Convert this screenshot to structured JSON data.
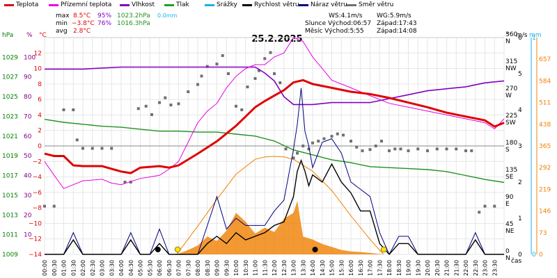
{
  "legend": [
    {
      "label": "Teplota",
      "color": "#e00000"
    },
    {
      "label": "Přízemní teplota",
      "color": "#e600e6"
    },
    {
      "label": "Vlhkost",
      "color": "#8000c0"
    },
    {
      "label": "Tlak",
      "color": "#20a020"
    },
    {
      "label": "Srážky",
      "color": "#1ab0e8"
    },
    {
      "label": "Rychlost větru",
      "color": "#000000"
    },
    {
      "label": "Náraz větru",
      "color": "#000080"
    },
    {
      "label": "Směr větru",
      "color": "#707070"
    }
  ],
  "stats": {
    "max_label": "max",
    "max_temp": "8.5°C",
    "max_hum": "95%",
    "max_press": "1023.2hPa",
    "max_rain": "0.0mm",
    "min_label": "min",
    "min_temp": "−3.8°C",
    "min_hum": "76%",
    "min_press": "1016.3hPa",
    "avg_label": "avg",
    "avg_temp": "2.8°C"
  },
  "wind_info": {
    "ws": "WS:4.1m/s",
    "wg": "WG:5.9m/s"
  },
  "sun": {
    "rise": "Slunce Východ:06:57",
    "set": "Západ:17:43"
  },
  "moon": {
    "rise": "Měsíc  Východ:5:55",
    "set": "Západ:14:08"
  },
  "chart_data": {
    "type": "line",
    "title": "25.2.2025",
    "xlabel": "čas",
    "x_ticks": [
      "00:00",
      "00:30",
      "01:00",
      "01:30",
      "02:00",
      "02:30",
      "03:00",
      "03:30",
      "04:00",
      "04:30",
      "05:00",
      "05:30",
      "06:00",
      "06:30",
      "07:00",
      "07:30",
      "08:00",
      "08:30",
      "09:00",
      "09:30",
      "10:00",
      "10:30",
      "11:00",
      "11:30",
      "12:00",
      "12:30",
      "13:00",
      "13:30",
      "14:00",
      "14:30",
      "15:00",
      "15:30",
      "16:00",
      "16:30",
      "17:00",
      "17:30",
      "18:00",
      "18:30",
      "19:00",
      "19:30",
      "20:00",
      "20:30",
      "21:00",
      "21:30",
      "22:00",
      "22:30",
      "23:00",
      "23:30"
    ],
    "axes": {
      "pressure": {
        "label": "hPa",
        "ticks": [
          1009,
          1011,
          1013,
          1015,
          1017,
          1019,
          1021,
          1023,
          1025,
          1027,
          1029
        ],
        "range": [
          1009,
          1031
        ],
        "color": "#008000"
      },
      "humidity": {
        "label": "%",
        "ticks": [
          10,
          20,
          30,
          40,
          50,
          60,
          70,
          80,
          90,
          100
        ],
        "range": [
          0,
          110
        ],
        "color": "#800080"
      },
      "temperature": {
        "label": "°C",
        "ticks": [
          -14,
          -12,
          -10,
          -8,
          -6,
          -4,
          -2,
          0,
          2,
          4,
          6,
          8,
          10,
          12
        ],
        "range": [
          -14,
          14
        ],
        "color": "#e00000"
      },
      "direction": {
        "label": "°",
        "ticks": [
          {
            "v": "0",
            "c": "N"
          },
          {
            "v": "45",
            "c": "NE"
          },
          {
            "v": "90",
            "c": "E"
          },
          {
            "v": "135",
            "c": "SE"
          },
          {
            "v": "180",
            "c": "S"
          },
          {
            "v": "225",
            "c": "SW"
          },
          {
            "v": "270",
            "c": "W"
          },
          {
            "v": "315",
            "c": "NW"
          },
          {
            "v": "360",
            "c": "N"
          }
        ],
        "range": [
          0,
          360
        ]
      },
      "wind": {
        "label": "m/s",
        "ticks": [
          0,
          1,
          2,
          3,
          4,
          5,
          6
        ],
        "range": [
          0,
          6
        ]
      },
      "rain": {
        "label": "mm",
        "ticks": [
          0,
          1
        ],
        "range": [
          0,
          1
        ],
        "color": "#1ab0e8"
      },
      "solar": {
        "ticks": [
          0,
          73,
          146,
          219,
          292,
          365,
          438,
          511,
          584,
          657
        ],
        "range": [
          0,
          730
        ],
        "color": "#f08000"
      }
    },
    "series": [
      {
        "name": "Teplota",
        "axis": "temperature",
        "color": "#e00000",
        "x": [
          0,
          0.5,
          1,
          1.5,
          2,
          3,
          4,
          4.5,
          5,
          6,
          6.5,
          7,
          8,
          9,
          9.5,
          10,
          10.5,
          11,
          11.5,
          12,
          12.5,
          13,
          13.5,
          14,
          15,
          16,
          17,
          18,
          19,
          20,
          21,
          22,
          23,
          23.5,
          24
        ],
        "y": [
          -1.0,
          -1.3,
          -1.3,
          -2.5,
          -2.6,
          -2.6,
          -3.3,
          -3.5,
          -2.8,
          -2.6,
          -2.8,
          -2.5,
          -1.0,
          0.6,
          1.6,
          2.6,
          3.8,
          5.0,
          5.8,
          6.5,
          7.2,
          8.2,
          8.5,
          8.0,
          7.5,
          7.0,
          6.7,
          6.2,
          5.6,
          5.0,
          4.3,
          3.8,
          3.3,
          2.5,
          3.0
        ]
      },
      {
        "name": "Přízemní teplota",
        "axis": "temperature",
        "color": "#e600e6",
        "x": [
          0,
          0.5,
          1,
          1.5,
          2,
          3,
          3.5,
          4,
          5,
          6,
          6.5,
          7,
          7.5,
          8,
          8.5,
          9,
          9.5,
          10,
          10.5,
          11,
          11.5,
          12,
          12.5,
          13,
          13.5,
          14,
          14.5,
          15,
          16,
          17,
          18,
          19,
          20,
          21,
          22,
          23,
          23.5,
          24
        ],
        "y": [
          -2.0,
          -3.8,
          -5.5,
          -5.0,
          -4.5,
          -4.3,
          -4.8,
          -5.0,
          -4.2,
          -3.8,
          -3.0,
          -2.0,
          0.5,
          3.0,
          4.5,
          5.5,
          7.5,
          9.0,
          10.0,
          10.5,
          10.5,
          11.5,
          12.0,
          14.0,
          13.5,
          11.5,
          10.0,
          8.5,
          7.5,
          6.5,
          5.5,
          5.0,
          4.5,
          4.0,
          3.5,
          3.0,
          2.2,
          3.5
        ]
      },
      {
        "name": "Vlhkost",
        "axis": "humidity",
        "color": "#8000c0",
        "x": [
          0,
          2,
          4,
          6,
          7,
          8,
          9,
          10,
          11,
          11.5,
          12,
          12.5,
          13,
          13.5,
          14,
          15,
          16,
          17,
          18,
          19,
          20,
          21,
          22,
          23,
          24
        ],
        "y": [
          94,
          94,
          95,
          95,
          95,
          95,
          95,
          95,
          95,
          92,
          88,
          80,
          76,
          76,
          76,
          77,
          77,
          77,
          79,
          81,
          83,
          84,
          85,
          87,
          88
        ]
      },
      {
        "name": "Tlak",
        "axis": "pressure",
        "color": "#209020",
        "x": [
          0,
          1,
          2,
          3,
          4,
          5,
          6,
          7,
          8,
          9,
          10,
          11,
          12,
          13,
          14,
          15,
          16,
          17,
          18,
          19,
          20,
          21,
          22,
          23,
          24
        ],
        "y": [
          1022.7,
          1022.4,
          1022.2,
          1022.0,
          1021.9,
          1021.7,
          1021.5,
          1021.5,
          1021.4,
          1021.4,
          1021.2,
          1021.0,
          1020.5,
          1019.6,
          1019.1,
          1018.6,
          1018.3,
          1017.9,
          1017.8,
          1017.7,
          1017.6,
          1017.4,
          1017.0,
          1016.6,
          1016.3
        ]
      },
      {
        "name": "Rychlost větru",
        "axis": "wind",
        "color": "#000000",
        "x": [
          0,
          1,
          1.5,
          2,
          2.5,
          3,
          3.5,
          4,
          4.5,
          5,
          5.5,
          6,
          6.5,
          7,
          7.5,
          8,
          8.5,
          9,
          9.5,
          10,
          10.5,
          11,
          11.5,
          12,
          12.5,
          13,
          13.2,
          13.4,
          13.6,
          13.8,
          14,
          14.5,
          15,
          15.5,
          16,
          16.5,
          17,
          17.5,
          18,
          18.5,
          19,
          19.5,
          20,
          20.5,
          21,
          21.5,
          22,
          22.5,
          23,
          23.5,
          24
        ],
        "y": [
          0,
          0,
          0.4,
          0,
          0,
          0,
          0,
          0,
          0.4,
          0,
          0,
          0.3,
          0,
          0,
          0,
          0,
          0.3,
          0.5,
          0.3,
          0.6,
          0.4,
          0.5,
          0.6,
          0.8,
          0.9,
          1.6,
          2.3,
          2.6,
          2.3,
          1.9,
          2.2,
          2.0,
          2.5,
          2.0,
          1.7,
          1.2,
          1.2,
          0.3,
          0,
          0.3,
          0.3,
          0,
          0,
          0,
          0,
          0,
          0,
          0.4,
          0,
          0,
          0
        ]
      },
      {
        "name": "Náraz větru",
        "axis": "wind",
        "color": "#000080",
        "x": [
          0,
          1,
          1.5,
          2,
          2.5,
          3,
          3.5,
          4,
          4.5,
          5,
          5.5,
          6,
          6.5,
          7,
          7.5,
          8,
          8.5,
          9,
          9.5,
          10,
          10.5,
          11,
          11.5,
          12,
          12.5,
          13,
          13.2,
          13.4,
          13.6,
          13.8,
          14,
          14.5,
          15,
          15.5,
          16,
          16.5,
          17,
          17.5,
          18,
          18.5,
          19,
          19.5,
          20,
          20.5,
          21,
          21.5,
          22,
          22.5,
          23,
          23.5,
          24
        ],
        "y": [
          0,
          0,
          0.6,
          0,
          0,
          0,
          0,
          0,
          0.6,
          0,
          0,
          0.7,
          0,
          0,
          0,
          0,
          0.8,
          1.6,
          0.7,
          1.0,
          0.8,
          0.8,
          0.8,
          1.2,
          1.5,
          2.9,
          3.6,
          4.6,
          3.4,
          3.0,
          2.4,
          3.1,
          3.2,
          2.8,
          2.0,
          1.8,
          1.6,
          0.6,
          0,
          0.5,
          0.5,
          0,
          0,
          0,
          0,
          0,
          0,
          0.6,
          0,
          0,
          0
        ]
      },
      {
        "name": "Sluneční záření",
        "axis": "solar",
        "color": "#f08000",
        "x": [
          6.9,
          8,
          9,
          10,
          11,
          11.5,
          12,
          12.5,
          13,
          14,
          15,
          16,
          17,
          17.7
        ],
        "y": [
          0,
          95,
          185,
          270,
          320,
          328,
          330,
          328,
          320,
          280,
          215,
          130,
          50,
          0
        ]
      },
      {
        "name": "Sluneční záření (naměřené)",
        "axis": "solar",
        "color": "#f08000",
        "x": [
          6.9,
          7.5,
          8,
          8.5,
          9,
          9.5,
          10,
          10.5,
          11,
          11.5,
          12,
          12.5,
          13,
          13.2,
          13.5,
          14,
          14.5,
          15,
          15.5,
          16,
          16.5,
          17,
          17.7
        ],
        "y": [
          0,
          15,
          30,
          60,
          45,
          80,
          140,
          110,
          70,
          90,
          75,
          120,
          140,
          180,
          60,
          50,
          35,
          25,
          15,
          10,
          8,
          5,
          0
        ]
      },
      {
        "name": "Směr větru",
        "axis": "direction",
        "color": "#707070",
        "x": [
          0,
          0.5,
          1,
          1.5,
          1.7,
          2,
          2.5,
          3,
          3.5,
          4.2,
          4.5,
          4.9,
          5.3,
          5.6,
          6,
          6.3,
          6.6,
          7,
          7.5,
          8,
          8.2,
          8.5,
          9,
          9.3,
          9.6,
          10,
          10.3,
          10.6,
          11,
          11.2,
          11.5,
          11.8,
          12,
          12.3,
          12.6,
          13,
          13.2,
          13.5,
          13.8,
          14,
          14.3,
          14.6,
          15,
          15.3,
          15.6,
          16,
          16.3,
          16.6,
          17,
          17.3,
          17.6,
          18,
          18.3,
          18.6,
          19,
          19.5,
          20,
          20.5,
          21,
          21.5,
          22,
          22.3,
          22.7,
          23,
          23.5
        ],
        "y": [
          80,
          80,
          240,
          240,
          190,
          176,
          176,
          176,
          176,
          120,
          120,
          242,
          246,
          232,
          252,
          260,
          248,
          250,
          270,
          282,
          296,
          312,
          316,
          330,
          300,
          246,
          240,
          278,
          292,
          305,
          325,
          335,
          300,
          285,
          175,
          160,
          168,
          180,
          175,
          185,
          188,
          192,
          196,
          200,
          198,
          188,
          178,
          172,
          174,
          180,
          188,
          172,
          175,
          175,
          172,
          175,
          172,
          175,
          175,
          175,
          172,
          172,
          70,
          80,
          80
        ]
      }
    ],
    "rain_total": 0.0
  }
}
